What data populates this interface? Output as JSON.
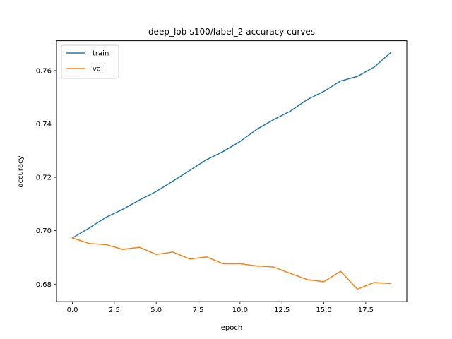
{
  "chart_data": {
    "type": "line",
    "title": "deep_lob-s100/label_2 accuracy curves",
    "xlabel": "epoch",
    "ylabel": "accuracy",
    "xlim": [
      -0.95,
      19.95
    ],
    "ylim": [
      0.6734,
      0.7712
    ],
    "x": [
      0,
      1,
      2,
      3,
      4,
      5,
      6,
      7,
      8,
      9,
      10,
      11,
      12,
      13,
      14,
      15,
      16,
      17,
      18,
      19
    ],
    "xticks": [
      0.0,
      2.5,
      5.0,
      7.5,
      10.0,
      12.5,
      15.0,
      17.5
    ],
    "xtick_labels": [
      "0.0",
      "2.5",
      "5.0",
      "7.5",
      "10.0",
      "12.5",
      "15.0",
      "17.5"
    ],
    "yticks": [
      0.68,
      0.7,
      0.72,
      0.74,
      0.76
    ],
    "ytick_labels": [
      "0.68",
      "0.70",
      "0.72",
      "0.74",
      "0.76"
    ],
    "grid": false,
    "legend_position": "upper-left",
    "series": [
      {
        "name": "train",
        "color": "#1f77b4",
        "values": [
          0.6973,
          0.701,
          0.705,
          0.708,
          0.7115,
          0.7147,
          0.7186,
          0.7226,
          0.7266,
          0.7297,
          0.7334,
          0.738,
          0.7416,
          0.7448,
          0.7491,
          0.7522,
          0.7561,
          0.7578,
          0.7613,
          0.7668
        ]
      },
      {
        "name": "val",
        "color": "#ff7f0e",
        "values": [
          0.6973,
          0.6952,
          0.6948,
          0.693,
          0.6938,
          0.6911,
          0.692,
          0.6894,
          0.6902,
          0.6876,
          0.6876,
          0.6868,
          0.6864,
          0.684,
          0.6817,
          0.6809,
          0.6848,
          0.6781,
          0.6806,
          0.6802
        ]
      }
    ]
  }
}
